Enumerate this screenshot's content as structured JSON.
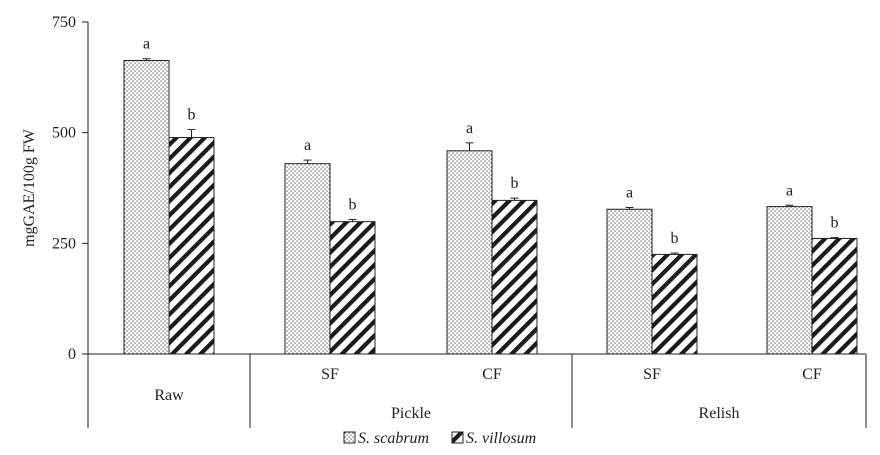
{
  "chart_data": {
    "type": "bar",
    "ylabel": "mgGAE/100g FW",
    "ylim": [
      0,
      750
    ],
    "yticks": [
      "0",
      "250",
      "500",
      "750"
    ],
    "grid": false,
    "legend_position": "bottom",
    "categories": [
      "Raw",
      "SF",
      "CF",
      "SF",
      "CF"
    ],
    "groups": [
      {
        "label": "Pickle",
        "categories": [
          "SF",
          "CF"
        ]
      },
      {
        "label": "Relish",
        "categories": [
          "SF",
          "CF"
        ]
      }
    ],
    "series": [
      {
        "name": "S. scabrum",
        "values": [
          663,
          430,
          459,
          327,
          333
        ],
        "errors": [
          4,
          8,
          18,
          4,
          3
        ],
        "letters": [
          "a",
          "a",
          "a",
          "a",
          "a"
        ],
        "pattern": "dots"
      },
      {
        "name": "S. villosum",
        "values": [
          489,
          299,
          347,
          225,
          261
        ],
        "errors": [
          18,
          5,
          5,
          3,
          2
        ],
        "letters": [
          "b",
          "b",
          "b",
          "b",
          "b"
        ],
        "pattern": "diagonal-stripes"
      }
    ]
  }
}
